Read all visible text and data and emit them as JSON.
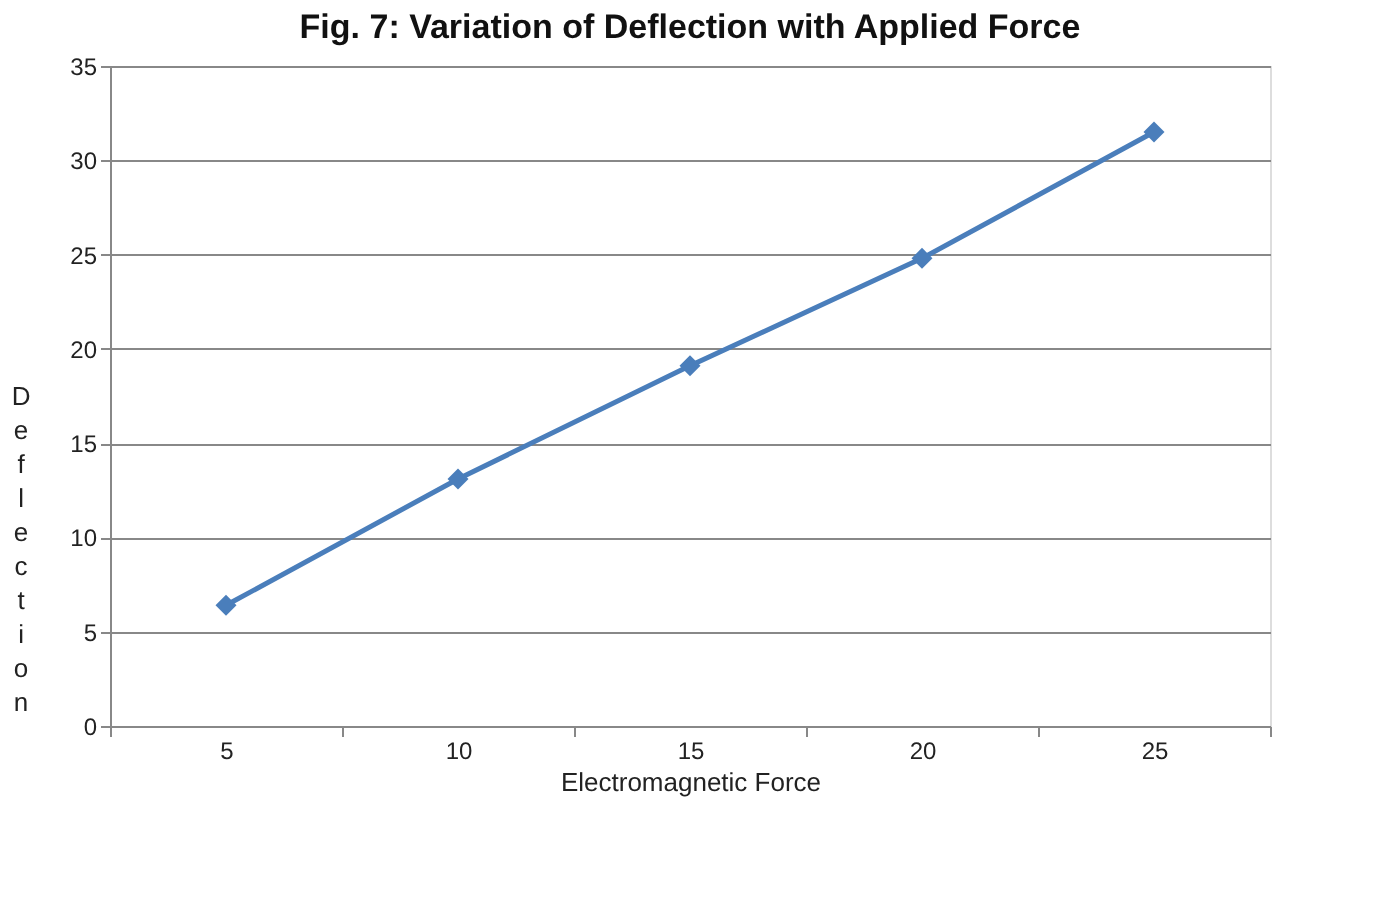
{
  "chart_data": {
    "type": "line",
    "title": "Fig. 7: Variation of Deflection with Applied Force",
    "xlabel": "Electromagnetic Force",
    "ylabel": "Deflection",
    "categories": [
      "5",
      "10",
      "15",
      "20",
      "25"
    ],
    "series": [
      {
        "color": "#4a7ebb",
        "values": [
          6.4,
          13.1,
          19.1,
          24.8,
          31.5
        ]
      }
    ],
    "ylim": [
      0,
      35
    ],
    "yticks": [
      0,
      5,
      10,
      15,
      20,
      25,
      30,
      35
    ],
    "grid": "y",
    "marker": "diamond",
    "line_style": "solid",
    "legend": false
  }
}
